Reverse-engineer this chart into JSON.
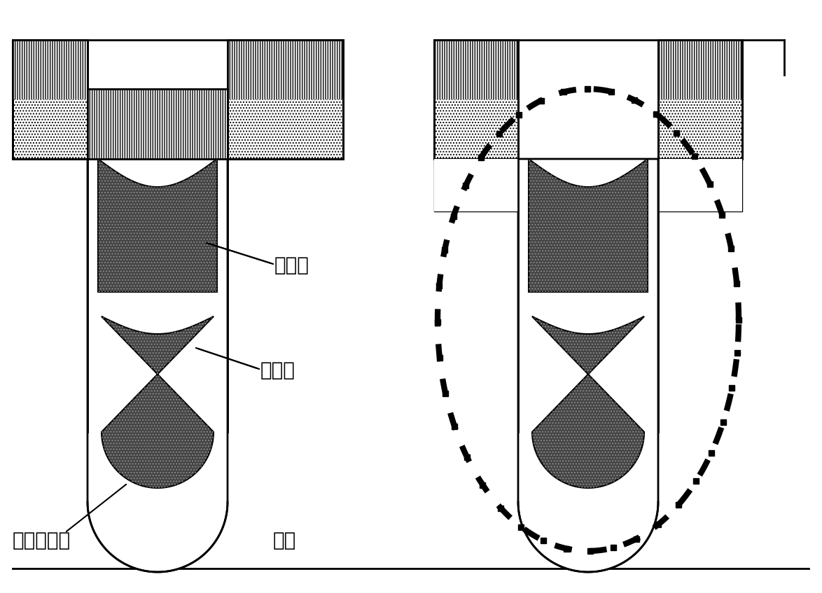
{
  "bg_color": "#ffffff",
  "line_color": "#000000",
  "label_upper_gate": "上层栊",
  "label_lower_gate": "下层栊",
  "label_bottom_oxide": "底部氧化层",
  "label_substrate": "衬底",
  "font_size": 20,
  "gate_fill_color": "#444444",
  "dark_region_color": "#333333"
}
